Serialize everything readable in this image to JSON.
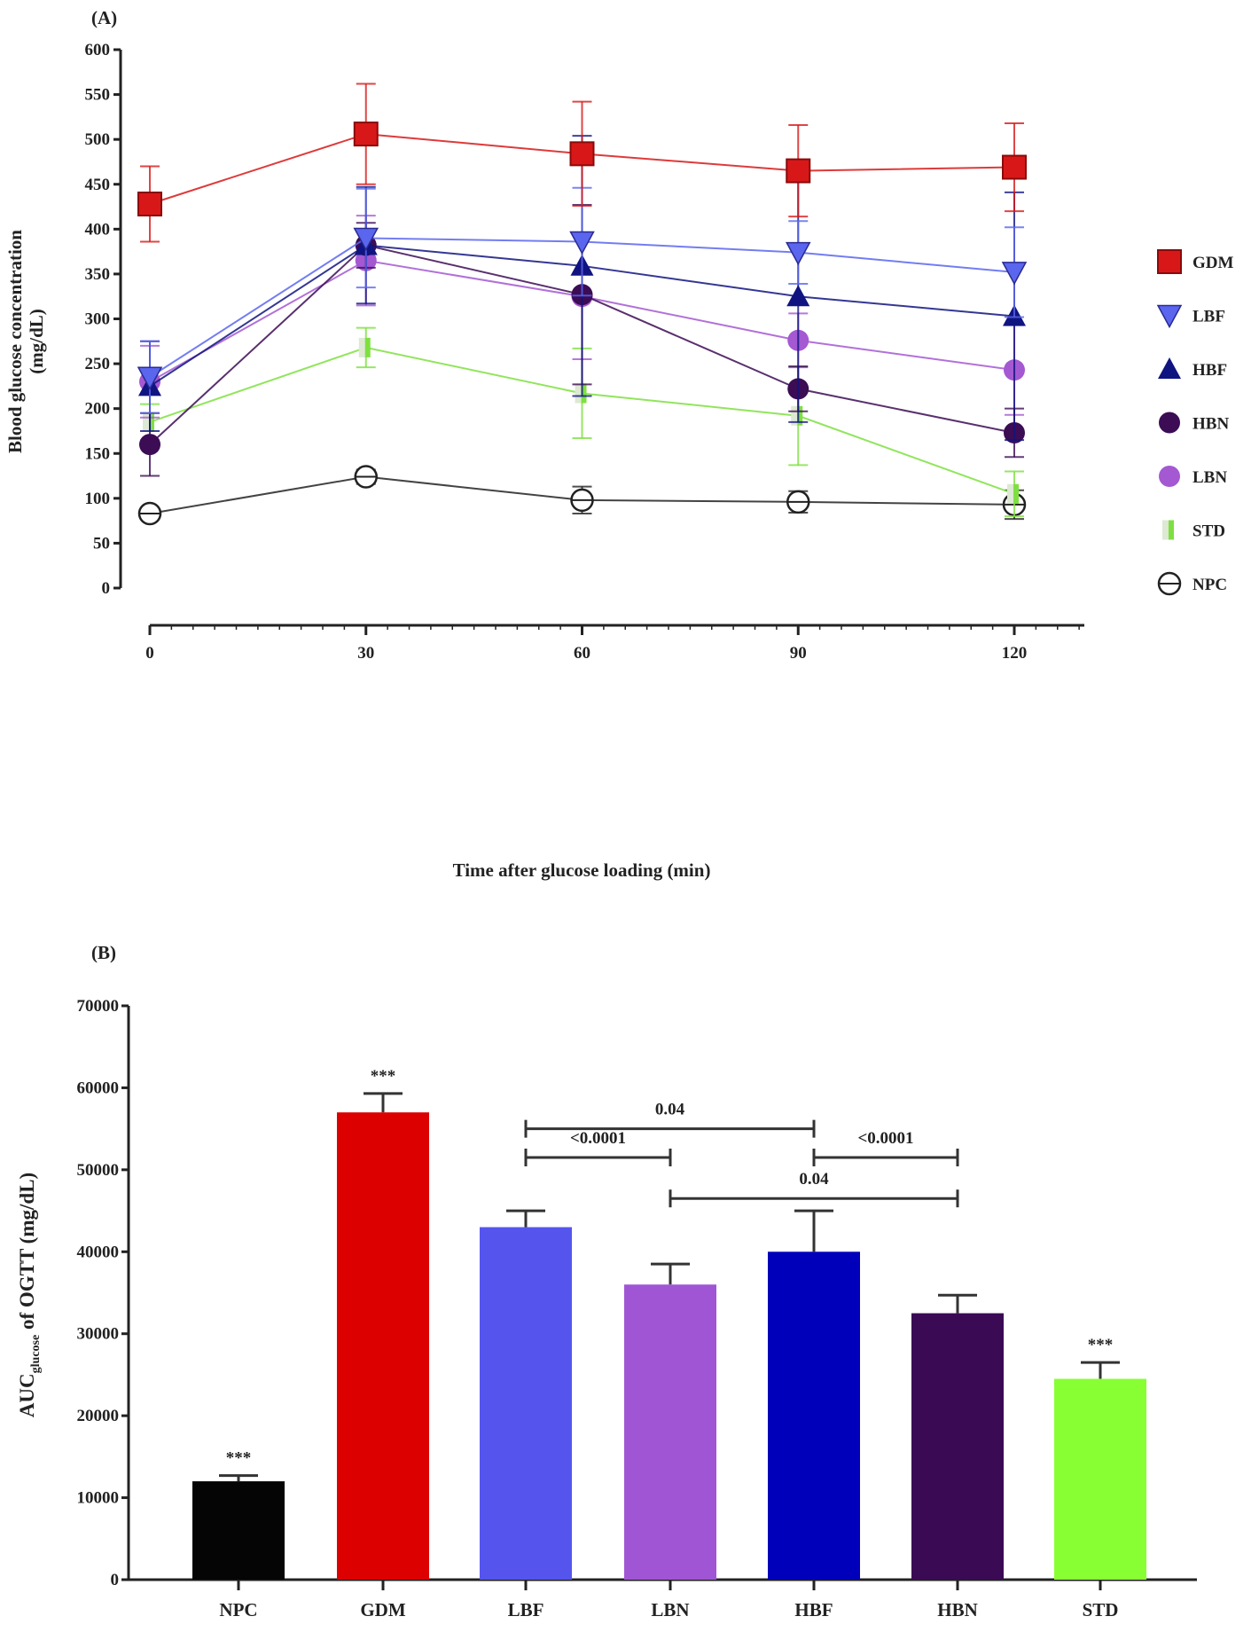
{
  "chart_data": [
    {
      "type": "line",
      "panel_label": "(A)",
      "xlabel": "Time after glucose loading (min)",
      "ylabel": "Blood glucose concentration",
      "ylabel_unit": "(mg/dL)",
      "x": [
        0,
        30,
        60,
        90,
        120
      ],
      "x_ticks": [
        "0",
        "30",
        "60",
        "90",
        "120"
      ],
      "xlim": [
        0,
        130
      ],
      "ylim": [
        0,
        600
      ],
      "y_ticks": [
        "0",
        "50",
        "100",
        "150",
        "200",
        "250",
        "300",
        "350",
        "400",
        "450",
        "500",
        "550",
        "600"
      ],
      "grid": false,
      "legend_position": "right",
      "series": [
        {
          "name": "GDM",
          "marker": "square",
          "color": "#d81818",
          "values": [
            428,
            506,
            484,
            465,
            469
          ],
          "error": [
            42,
            56,
            58,
            51,
            49
          ]
        },
        {
          "name": "LBF",
          "marker": "triangle-down",
          "color": "#5a66ee",
          "values": [
            235,
            390,
            386,
            374,
            352
          ],
          "error": [
            40,
            55,
            60,
            35,
            50
          ]
        },
        {
          "name": "HBF",
          "marker": "triangle-up",
          "color": "#101480",
          "values": [
            225,
            382,
            359,
            325,
            303
          ],
          "error": [
            50,
            65,
            145,
            140,
            138
          ]
        },
        {
          "name": "HBN",
          "marker": "circle",
          "color": "#3c0c55",
          "values": [
            160,
            382,
            327,
            222,
            173
          ],
          "error": [
            35,
            25,
            100,
            25,
            27
          ]
        },
        {
          "name": "LBN",
          "marker": "circle",
          "color": "#a458d2",
          "values": [
            230,
            365,
            325,
            276,
            243
          ],
          "error": [
            40,
            50,
            70,
            30,
            50
          ]
        },
        {
          "name": "STD",
          "marker": "bar",
          "color": "#7ee040",
          "values": [
            185,
            268,
            217,
            192,
            105
          ],
          "error": [
            20,
            22,
            50,
            55,
            25
          ]
        },
        {
          "name": "NPC",
          "marker": "open-circle",
          "color": "#222222",
          "values": [
            83,
            124,
            98,
            96,
            93
          ],
          "error": [
            5,
            8,
            15,
            12,
            16
          ]
        }
      ]
    },
    {
      "type": "bar",
      "panel_label": "(B)",
      "ylabel_main": "AUC",
      "ylabel_sub": "glucose",
      "ylabel_rest": " of OGTT (mg/dL)",
      "ylim": [
        0,
        70000
      ],
      "y_ticks": [
        "0",
        "10000",
        "20000",
        "30000",
        "40000",
        "50000",
        "60000",
        "70000"
      ],
      "categories": [
        "NPC",
        "GDM",
        "LBF",
        "LBN",
        "HBF",
        "HBN",
        "STD"
      ],
      "values": [
        12000,
        57000,
        43000,
        36000,
        40000,
        32500,
        24500
      ],
      "error": [
        700,
        2300,
        2000,
        2500,
        5000,
        2200,
        2000
      ],
      "colors": [
        "#050505",
        "#dd0000",
        "#5555ee",
        "#a055d5",
        "#0000bb",
        "#3a0a55",
        "#88ff33"
      ],
      "star_labels": [
        "***",
        "***",
        "",
        "",
        "",
        "",
        "***"
      ],
      "comparisons": [
        {
          "from": "LBF",
          "to": "HBF",
          "label": "0.04",
          "level": 55000
        },
        {
          "from": "LBF",
          "to": "LBN",
          "label": "<0.0001",
          "level": 51500
        },
        {
          "from": "HBF",
          "to": "HBN",
          "label": "<0.0001",
          "level": 51500
        },
        {
          "from": "LBN",
          "to": "HBN",
          "label": "0.04",
          "level": 46500
        }
      ]
    }
  ]
}
